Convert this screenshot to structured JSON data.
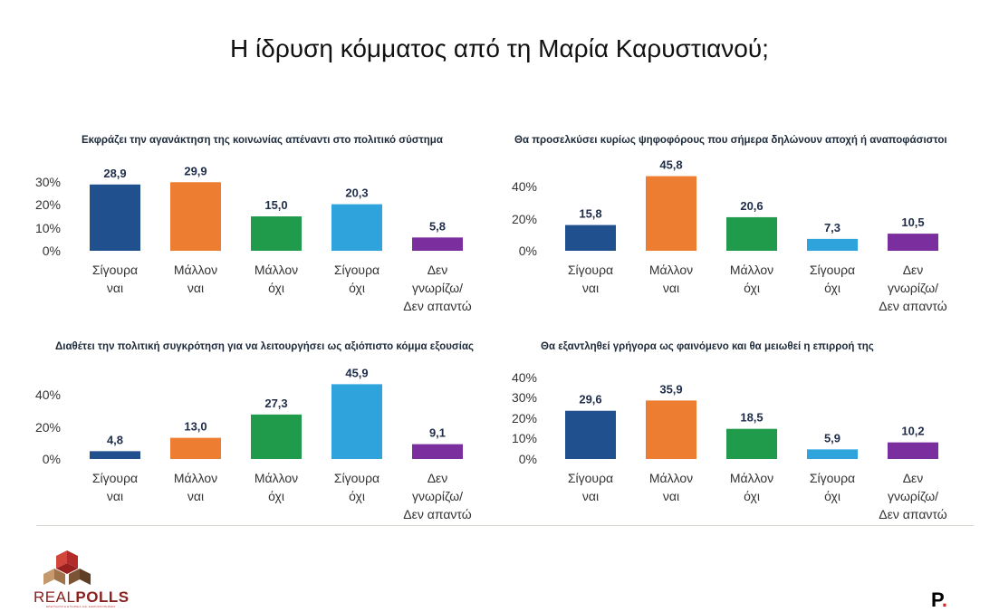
{
  "title": "Η ίδρυση κόμματος από τη Μαρία Καρυστιανού;",
  "colors": [
    "#21508f",
    "#ed7d31",
    "#1f9b4b",
    "#2fa4dc",
    "#7b2e9e"
  ],
  "chart_data": [
    {
      "type": "bar",
      "title": "Εκφράζει την αγανάκτηση της κοινωνίας απέναντι στο πολιτικό σύστημα",
      "categories": [
        [
          "Σίγουρα",
          "ναι"
        ],
        [
          "Μάλλον",
          "ναι"
        ],
        [
          "Μάλλον",
          "όχι"
        ],
        [
          "Σίγουρα",
          "όχι"
        ],
        [
          "Δεν",
          "γνωρίζω/",
          "Δεν απαντώ"
        ]
      ],
      "values": [
        28.9,
        29.9,
        15.0,
        20.3,
        5.8
      ],
      "value_labels": [
        "28,9",
        "29,9",
        "15,0",
        "20,3",
        "5,8"
      ],
      "yticks": [
        "30%",
        "20%",
        "10%",
        "0%"
      ],
      "ylim": [
        0,
        30
      ]
    },
    {
      "type": "bar",
      "title": "Θα προσελκύσει κυρίως ψηφοφόρους που σήμερα δηλώνουν αποχή ή αναποφάσιστοι",
      "categories": [
        [
          "Σίγουρα",
          "ναι"
        ],
        [
          "Μάλλον",
          "ναι"
        ],
        [
          "Μάλλον",
          "όχι"
        ],
        [
          "Σίγουρα",
          "όχι"
        ],
        [
          "Δεν",
          "γνωρίζω/",
          "Δεν απαντώ"
        ]
      ],
      "values": [
        15.8,
        45.8,
        20.6,
        7.3,
        10.5
      ],
      "value_labels": [
        "15,8",
        "45,8",
        "20,6",
        "7,3",
        "10,5"
      ],
      "yticks": [
        "40%",
        "20%",
        "0%"
      ],
      "ylim": [
        0,
        40
      ]
    },
    {
      "type": "bar",
      "title": "Διαθέτει την πολιτική συγκρότηση για να λειτουργήσει ως αξιόπιστο κόμμα εξουσίας",
      "categories": [
        [
          "Σίγουρα",
          "ναι"
        ],
        [
          "Μάλλον",
          "ναι"
        ],
        [
          "Μάλλον",
          "όχι"
        ],
        [
          "Σίγουρα",
          "όχι"
        ],
        [
          "Δεν",
          "γνωρίζω/",
          "Δεν απαντώ"
        ]
      ],
      "values": [
        4.8,
        13.0,
        27.3,
        45.9,
        9.1
      ],
      "value_labels": [
        "4,8",
        "13,0",
        "27,3",
        "45,9",
        "9,1"
      ],
      "yticks": [
        "40%",
        "20%",
        "0%"
      ],
      "ylim": [
        0,
        40
      ]
    },
    {
      "type": "bar",
      "title": "Θα εξαντληθεί γρήγορα ως φαινόμενο και θα μειωθεί η επιρροή της",
      "categories": [
        [
          "Σίγουρα",
          "ναι"
        ],
        [
          "Μάλλον",
          "ναι"
        ],
        [
          "Μάλλον",
          "όχι"
        ],
        [
          "Σίγουρα",
          "όχι"
        ],
        [
          "Δεν",
          "γνωρίζω/",
          "Δεν απαντώ"
        ]
      ],
      "values": [
        29.6,
        35.9,
        18.5,
        5.9,
        10.2
      ],
      "value_labels": [
        "29,6",
        "35,9",
        "18,5",
        "5,9",
        "10,2"
      ],
      "yticks": [
        "40%",
        "30%",
        "20%",
        "10%",
        "0%"
      ],
      "ylim": [
        0,
        40
      ]
    }
  ],
  "footer": {
    "brand_left_a": "REAL",
    "brand_left_b": "POLLS",
    "brand_left_tagline": "ΕΡΕΥΝΗΤΙΚΗ ΕΤΑΙΡΕΙΑ ΚΑΙ ΔΗΜΟΣΚΟΠΗΣΕΙΣ",
    "brand_right": "P",
    "brand_right_dot": "."
  }
}
